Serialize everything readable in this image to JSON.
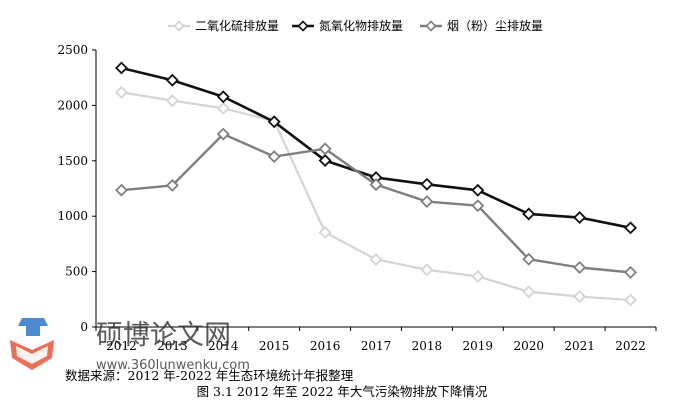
{
  "chart_data": {
    "type": "line",
    "x": [
      "2012",
      "2013",
      "2014",
      "2015",
      "2016",
      "2017",
      "2018",
      "2019",
      "2020",
      "2021",
      "2022"
    ],
    "yticks": [
      "0",
      "500",
      "1000",
      "1500",
      "2000",
      "2500"
    ],
    "ylim": [
      0,
      2500
    ],
    "grid": false,
    "legend_position": "top",
    "series": [
      {
        "name": "二氧化硫排放量",
        "color": "#d4d4d4",
        "values": [
          2118,
          2043,
          1974,
          1859,
          854,
          610,
          516,
          457,
          318,
          275,
          243
        ]
      },
      {
        "name": "氮氧化物排放量",
        "color": "#111111",
        "values": [
          2338,
          2227,
          2078,
          1852,
          1503,
          1349,
          1288,
          1234,
          1020,
          988,
          895
        ]
      },
      {
        "name": "烟（粉）尘排放量",
        "color": "#7f7f7f",
        "values": [
          1235,
          1278,
          1741,
          1538,
          1608,
          1285,
          1132,
          1095,
          612,
          537,
          493
        ]
      }
    ]
  },
  "source_note": "数据来源：2012 年-2022 年生态环境统计年报整理",
  "caption": "图 3.1 2012 年至 2022 年大气污染物排放下降情况",
  "watermark": {
    "text": "硕博论文网",
    "url": "www.360lunwenku.com",
    "colors": {
      "cap": "#2f76c8",
      "book": "#e8553a"
    }
  }
}
